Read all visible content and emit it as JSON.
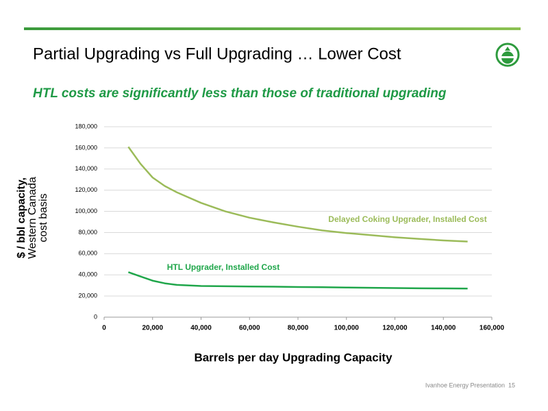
{
  "slide_title": "Partial Upgrading vs Full Upgrading … Lower Cost",
  "subtitle": "HTL costs are significantly less than those of traditional upgrading",
  "footer": "Ivanhoe Energy Presentation",
  "page_number": "15",
  "chart_data": {
    "type": "line",
    "x_label": "Barrels per day Upgrading Capacity",
    "y_label": [
      "$ / bbl capacity,",
      "Western Canada",
      "cost basis"
    ],
    "x": [
      10000,
      15000,
      20000,
      25000,
      30000,
      40000,
      50000,
      60000,
      70000,
      80000,
      90000,
      100000,
      110000,
      120000,
      130000,
      140000,
      150000
    ],
    "series": [
      {
        "name": "Delayed Coking Upgrader, Installed Cost",
        "color": "#9bbb59",
        "values": [
          161000,
          145000,
          132000,
          124000,
          118000,
          108000,
          100000,
          94000,
          89500,
          85500,
          82000,
          79500,
          77500,
          75500,
          74000,
          72500,
          71500
        ]
      },
      {
        "name": "HTL Upgrader, Installed Cost",
        "color": "#1fa64a",
        "values": [
          42500,
          38500,
          34500,
          32000,
          30500,
          29500,
          29200,
          29000,
          28800,
          28500,
          28300,
          28000,
          27800,
          27500,
          27300,
          27200,
          27000
        ]
      }
    ],
    "xlim": [
      0,
      160000
    ],
    "xticks": [
      0,
      {
        "value": 20000,
        "label": "20,000"
      },
      {
        "value": 40000,
        "label": "40,000"
      },
      {
        "value": 60000,
        "label": "60,000"
      },
      {
        "value": 80000,
        "label": "80,000"
      },
      {
        "value": 100000,
        "label": "100,000"
      },
      {
        "value": 120000,
        "label": "120,000"
      },
      {
        "value": 140000,
        "label": "140,000"
      },
      {
        "value": 160000,
        "label": "160,000"
      }
    ],
    "ylim": [
      0,
      180000
    ],
    "yticks": [
      0,
      {
        "value": 20000,
        "label": "20,000"
      },
      {
        "value": 40000,
        "label": "40,000"
      },
      {
        "value": 60000,
        "label": "60,000"
      },
      {
        "value": 80000,
        "label": "80,000"
      },
      {
        "value": 100000,
        "label": "100,000"
      },
      {
        "value": 120000,
        "label": "120,000"
      },
      {
        "value": 140000,
        "label": "140,000"
      },
      {
        "value": 160000,
        "label": "160,000"
      },
      {
        "value": 180000,
        "label": "180,000"
      }
    ],
    "grid": true
  }
}
